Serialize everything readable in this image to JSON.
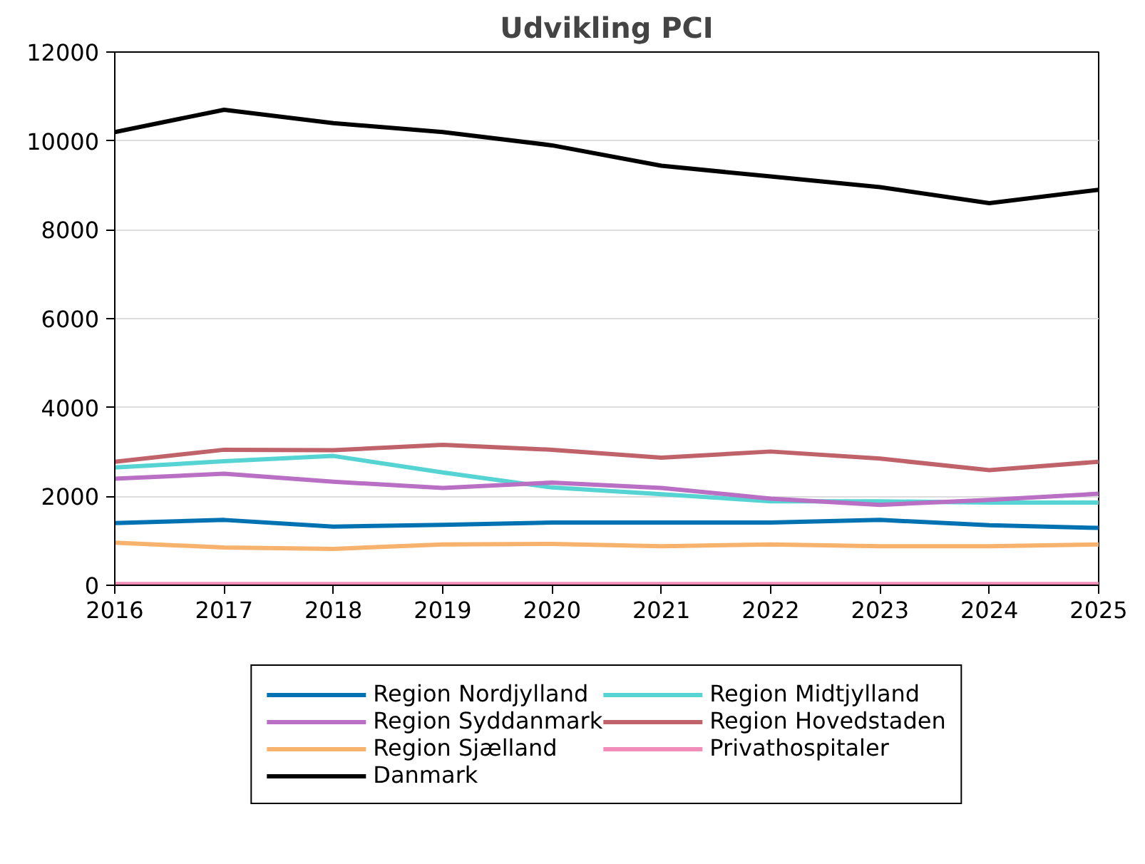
{
  "chart_data": {
    "type": "line",
    "title": "Udvikling PCI",
    "x": [
      2016,
      2017,
      2018,
      2019,
      2020,
      2021,
      2022,
      2023,
      2024,
      2025
    ],
    "xlim": [
      2016,
      2025
    ],
    "xticks": [
      2016,
      2017,
      2018,
      2019,
      2020,
      2021,
      2022,
      2023,
      2024,
      2025
    ],
    "ylim": [
      0,
      12000
    ],
    "yticks": [
      0,
      2000,
      4000,
      6000,
      8000,
      10000,
      12000
    ],
    "grid": "y",
    "legend": "bottom",
    "series": [
      {
        "name": "Region Nordjylland",
        "color": "#0072b2",
        "values": [
          1400,
          1470,
          1320,
          1360,
          1410,
          1410,
          1410,
          1470,
          1350,
          1290
        ]
      },
      {
        "name": "Region Midtjylland",
        "color": "#56d4d4",
        "values": [
          2650,
          2790,
          2910,
          2540,
          2200,
          2050,
          1890,
          1890,
          1860,
          1860
        ]
      },
      {
        "name": "Region Syddanmark",
        "color": "#b86fc4",
        "values": [
          2400,
          2510,
          2330,
          2190,
          2310,
          2190,
          1950,
          1810,
          1920,
          2060
        ]
      },
      {
        "name": "Region Hovedstaden",
        "color": "#c0626a",
        "values": [
          2780,
          3050,
          3040,
          3160,
          3050,
          2870,
          3010,
          2850,
          2590,
          2780
        ]
      },
      {
        "name": "Region Sjælland",
        "color": "#f7b26e",
        "values": [
          960,
          850,
          820,
          920,
          930,
          880,
          920,
          880,
          880,
          920
        ]
      },
      {
        "name": "Privathospitaler",
        "color": "#f28cb8",
        "values": [
          30,
          30,
          30,
          30,
          30,
          30,
          30,
          30,
          30,
          30
        ]
      },
      {
        "name": "Danmark",
        "color": "#000000",
        "values": [
          10200,
          10700,
          10400,
          10200,
          9900,
          9440,
          9200,
          8960,
          8600,
          8900
        ]
      }
    ]
  }
}
